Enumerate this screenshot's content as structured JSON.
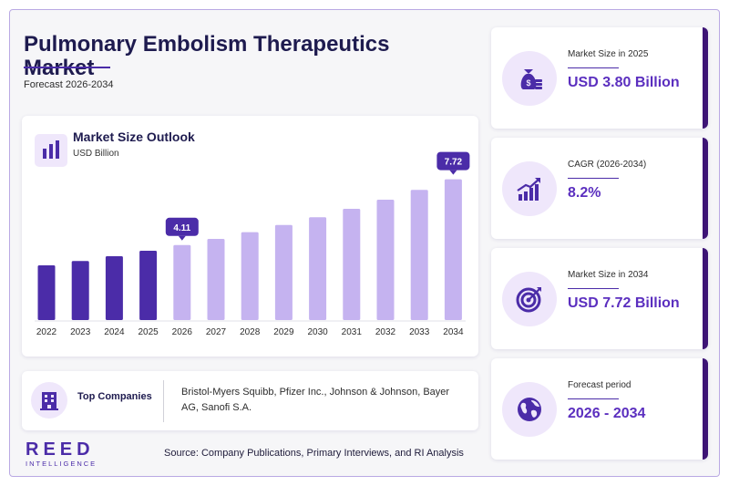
{
  "header": {
    "title": "Pulmonary Embolism Therapeutics Market",
    "subtitle": "Forecast 2026-2034"
  },
  "chart_card": {
    "title": "Market Size Outlook",
    "unit": "USD Billion",
    "icon": "bar-chart-icon"
  },
  "chart_data": {
    "type": "bar",
    "categories": [
      "2022",
      "2023",
      "2024",
      "2025",
      "2026",
      "2027",
      "2028",
      "2029",
      "2030",
      "2031",
      "2032",
      "2033",
      "2034"
    ],
    "values": [
      3.0,
      3.24,
      3.5,
      3.8,
      4.11,
      4.45,
      4.82,
      5.21,
      5.64,
      6.1,
      6.6,
      7.14,
      7.72
    ],
    "ylabel": "USD Billion",
    "ylim": [
      0,
      8.2
    ],
    "grid": false,
    "historical_color": "#4b2ca8",
    "forecast_color": "#c5b3f0",
    "callouts": [
      {
        "category": "2026",
        "label": "4.11"
      },
      {
        "category": "2034",
        "label": "7.72"
      }
    ]
  },
  "companies": {
    "label": "Top Companies",
    "list": "Bristol-Myers Squibb, Pfizer Inc., Johnson & Johnson, Bayer AG, Sanofi S.A.",
    "icon": "building-icon"
  },
  "footer": {
    "logo_main": "REED",
    "logo_sub": "INTELLIGENCE",
    "source": "Source: Company Publications, Primary Interviews, and RI Analysis"
  },
  "kpis": [
    {
      "label": "Market Size in 2025",
      "value": "USD 3.80 Billion",
      "icon": "money-bag-icon"
    },
    {
      "label": "CAGR (2026-2034)",
      "value": "8.2%",
      "icon": "growth-chart-icon"
    },
    {
      "label": "Market Size in 2034",
      "value": "USD 7.72 Billion",
      "icon": "target-icon"
    },
    {
      "label": "Forecast period",
      "value": "2026 - 2034",
      "icon": "globe-icon"
    }
  ],
  "colors": {
    "accent": "#4b2ca8",
    "accent_light": "#c5b3f0",
    "kpi_value": "#5b2fbf",
    "card_edge": "#3d1475",
    "icon_bg": "#efe7fb"
  }
}
